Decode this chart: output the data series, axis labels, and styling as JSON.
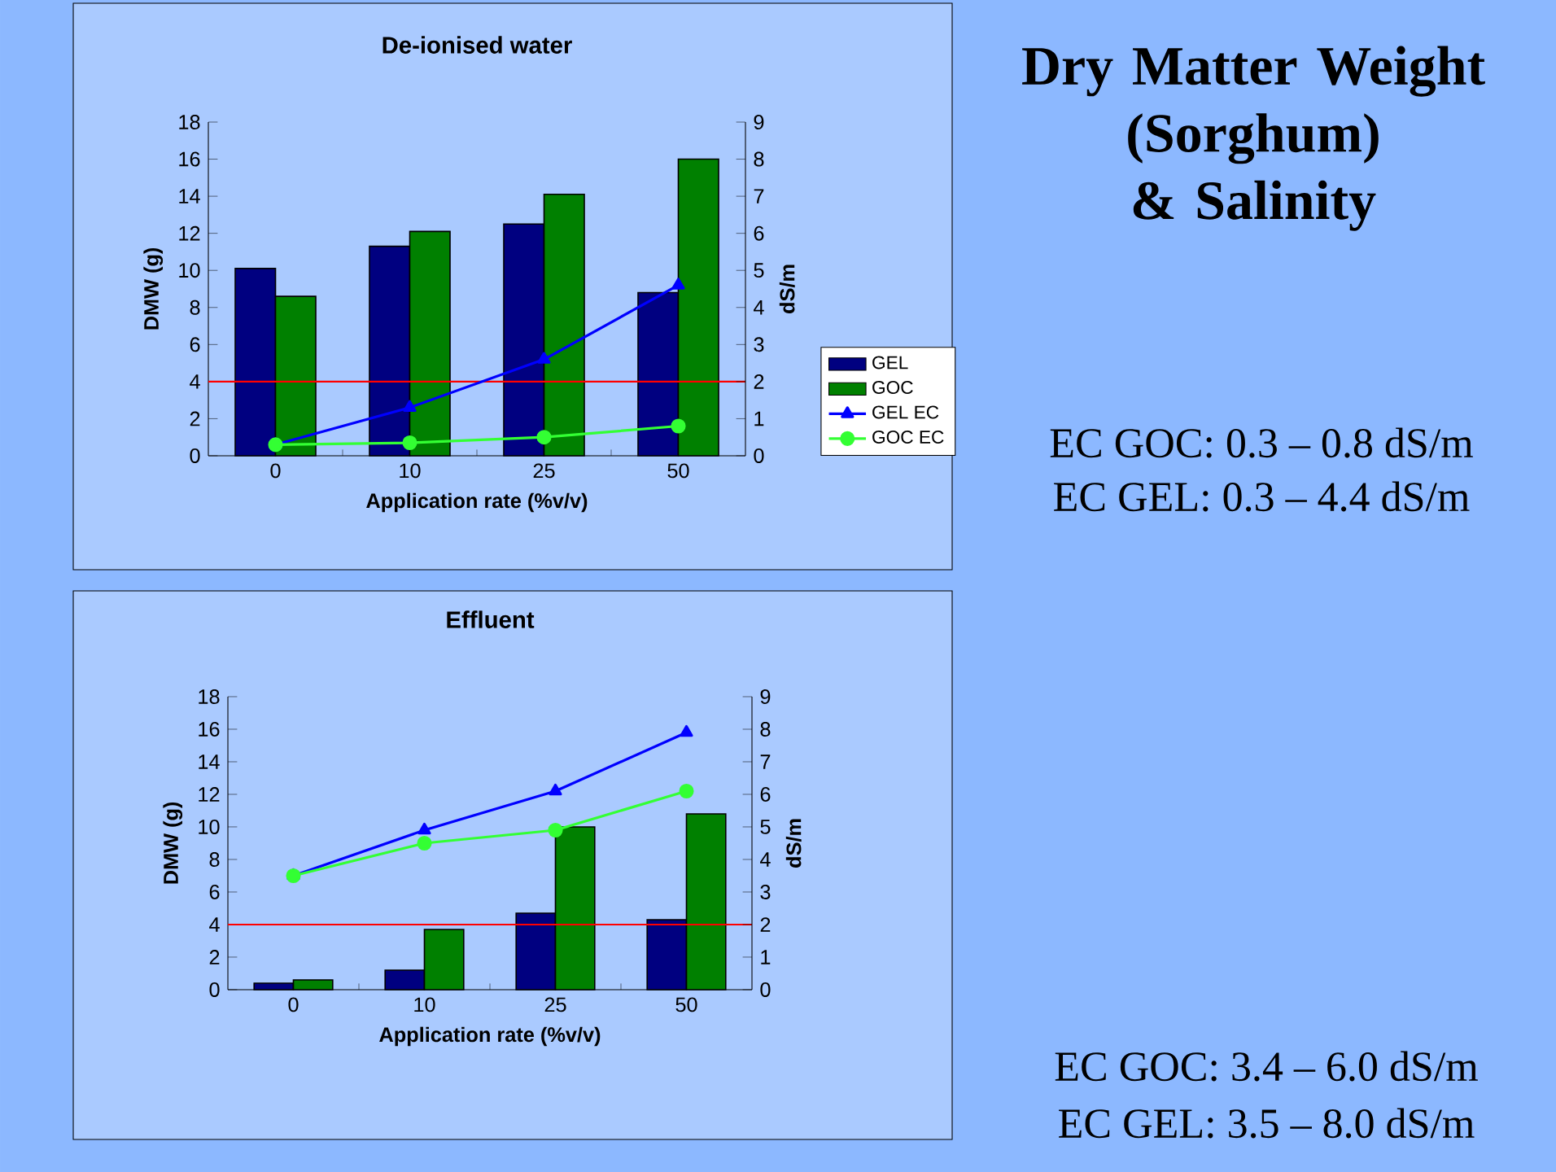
{
  "chart_data": [
    {
      "type": "bar",
      "title": "De-ionised water",
      "xlabel": "Application rate (%v/v)",
      "ylabel": "DMW (g)",
      "y2label": "dS/m",
      "categories": [
        "0",
        "10",
        "25",
        "50"
      ],
      "series": [
        {
          "name": "GEL",
          "type": "bar",
          "color": "#000080",
          "values": [
            10.1,
            11.3,
            12.5,
            8.8
          ]
        },
        {
          "name": "GOC",
          "type": "bar",
          "color": "#008000",
          "values": [
            8.6,
            12.1,
            14.1,
            16.0
          ]
        },
        {
          "name": "GEL EC",
          "type": "line",
          "axis": "y2",
          "marker": "triangle",
          "color": "#0000ff",
          "values": [
            0.3,
            1.3,
            2.6,
            4.6
          ]
        },
        {
          "name": "GOC EC",
          "type": "line",
          "axis": "y2",
          "marker": "circle",
          "color": "#33ff33",
          "values": [
            0.3,
            0.35,
            0.5,
            0.8
          ]
        }
      ],
      "ylim": [
        0,
        18
      ],
      "yticks": [
        0,
        2,
        4,
        6,
        8,
        10,
        12,
        14,
        16,
        18
      ],
      "y2lim": [
        0,
        9
      ],
      "y2ticks": [
        0,
        1,
        2,
        3,
        4,
        5,
        6,
        7,
        8,
        9
      ],
      "ref_lines": [
        {
          "axis": "y",
          "value": 4,
          "color": "#ff0000"
        }
      ],
      "legend": "bottom right",
      "annotations": [
        "EC GOC: 0.3 – 0.8 dS/m",
        "EC GEL: 0.3 – 4.4 dS/m"
      ]
    },
    {
      "type": "bar",
      "title": "Effluent",
      "xlabel": "Application rate (%v/v)",
      "ylabel": "DMW (g)",
      "y2label": "dS/m",
      "categories": [
        "0",
        "10",
        "25",
        "50"
      ],
      "series": [
        {
          "type": "bar",
          "color": "#000080",
          "values": [
            0.4,
            1.2,
            4.7,
            4.3
          ]
        },
        {
          "type": "bar",
          "color": "#008000",
          "values": [
            0.6,
            3.7,
            10.0,
            10.8
          ]
        },
        {
          "type": "line",
          "axis": "y2",
          "marker": "triangle",
          "color": "#0000ff",
          "values": [
            3.5,
            4.9,
            6.1,
            7.9
          ]
        },
        {
          "type": "line",
          "axis": "y2",
          "marker": "circle",
          "color": "#33ff33",
          "values": [
            3.5,
            4.5,
            4.9,
            6.1
          ]
        }
      ],
      "ylim": [
        0,
        18
      ],
      "yticks": [
        0,
        2,
        4,
        6,
        8,
        10,
        12,
        14,
        16,
        18
      ],
      "y2lim": [
        0,
        9
      ],
      "y2ticks": [
        0,
        1,
        2,
        3,
        4,
        5,
        6,
        7,
        8,
        9
      ],
      "ref_lines": [
        {
          "axis": "y",
          "value": 4,
          "color": "#ff0000"
        }
      ],
      "legend": false,
      "annotations": [
        "EC GOC: 3.4 – 6.0 dS/m",
        "EC GEL: 3.5 – 8.0 dS/m"
      ]
    },
    {
      "type": "other",
      "title": "Dry Matter Weight (Sorghum) & Salinity"
    }
  ]
}
